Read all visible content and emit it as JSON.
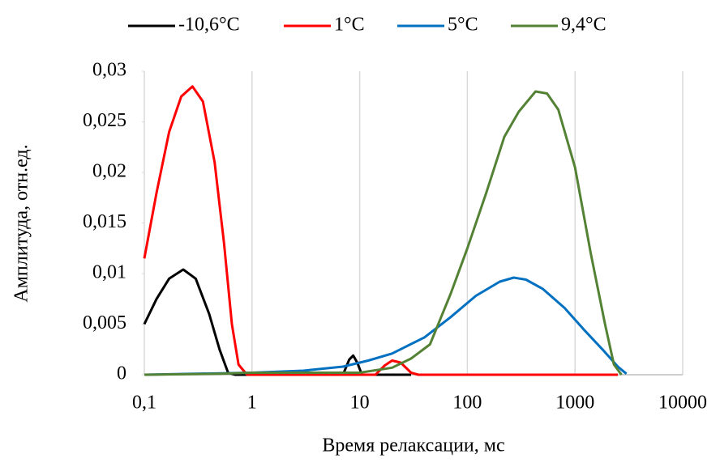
{
  "chart_data": {
    "type": "line",
    "xlabel": "Время релаксации,  мс",
    "ylabel": "Амплитуда, отн.ед.",
    "xscale": "log",
    "xlim": [
      0.1,
      10000
    ],
    "xticks": [
      {
        "value": 0.1,
        "label": "0,1"
      },
      1,
      10,
      100,
      1000,
      10000
    ],
    "ylim": [
      0,
      0.03
    ],
    "yticks": [
      0,
      {
        "value": 0.005,
        "label": "0,005"
      },
      {
        "value": 0.01,
        "label": "0,01"
      },
      {
        "value": 0.015,
        "label": "0,015"
      },
      {
        "value": 0.02,
        "label": "0,02"
      },
      {
        "value": 0.025,
        "label": "0,025"
      },
      {
        "value": 0.03,
        "label": "0,03"
      }
    ],
    "grid": "x",
    "legend": "top",
    "series": [
      {
        "name": "-10,6°C",
        "color": "#000000",
        "x": [
          0.1,
          0.13,
          0.17,
          0.23,
          0.3,
          0.4,
          0.5,
          0.6,
          0.7,
          1,
          3,
          7,
          8,
          8.7,
          9.5,
          10.5,
          30
        ],
        "values": [
          0.005,
          0.0075,
          0.0095,
          0.0104,
          0.0095,
          0.006,
          0.0025,
          0.0002,
          0,
          0,
          0,
          0,
          0.0015,
          0.0019,
          0.0012,
          0,
          0
        ]
      },
      {
        "name": "1°C",
        "color": "#ff0000",
        "x": [
          0.1,
          0.13,
          0.17,
          0.22,
          0.28,
          0.35,
          0.45,
          0.55,
          0.65,
          0.75,
          0.9,
          10,
          14,
          17,
          20,
          24,
          30,
          35,
          100,
          1000,
          2500
        ],
        "values": [
          0.0115,
          0.018,
          0.024,
          0.0275,
          0.0285,
          0.027,
          0.021,
          0.013,
          0.005,
          0.001,
          0,
          0,
          0,
          0.0009,
          0.0014,
          0.0012,
          0.0002,
          0,
          0,
          0,
          0
        ]
      },
      {
        "name": "5°C",
        "color": "#0070c0",
        "x": [
          0.1,
          0.3,
          1,
          3,
          7,
          12,
          20,
          40,
          70,
          120,
          200,
          270,
          350,
          500,
          800,
          1200,
          1800,
          2500,
          3000
        ],
        "values": [
          0,
          0.0001,
          0.0002,
          0.0004,
          0.0008,
          0.0014,
          0.0021,
          0.0037,
          0.0057,
          0.0078,
          0.0092,
          0.0096,
          0.0094,
          0.0085,
          0.0066,
          0.0045,
          0.0025,
          0.0008,
          0.0001
        ]
      },
      {
        "name": "9,4°C",
        "color": "#548235",
        "x": [
          0.1,
          0.5,
          1,
          5,
          10,
          20,
          30,
          45,
          70,
          100,
          150,
          220,
          300,
          430,
          550,
          700,
          1000,
          1400,
          1900,
          2300,
          2700
        ],
        "values": [
          0,
          0.0001,
          0.0002,
          0.0002,
          0.0002,
          0.0007,
          0.0016,
          0.003,
          0.008,
          0.0125,
          0.018,
          0.0235,
          0.026,
          0.028,
          0.0278,
          0.0262,
          0.0205,
          0.012,
          0.005,
          0.001,
          0
        ]
      }
    ]
  }
}
